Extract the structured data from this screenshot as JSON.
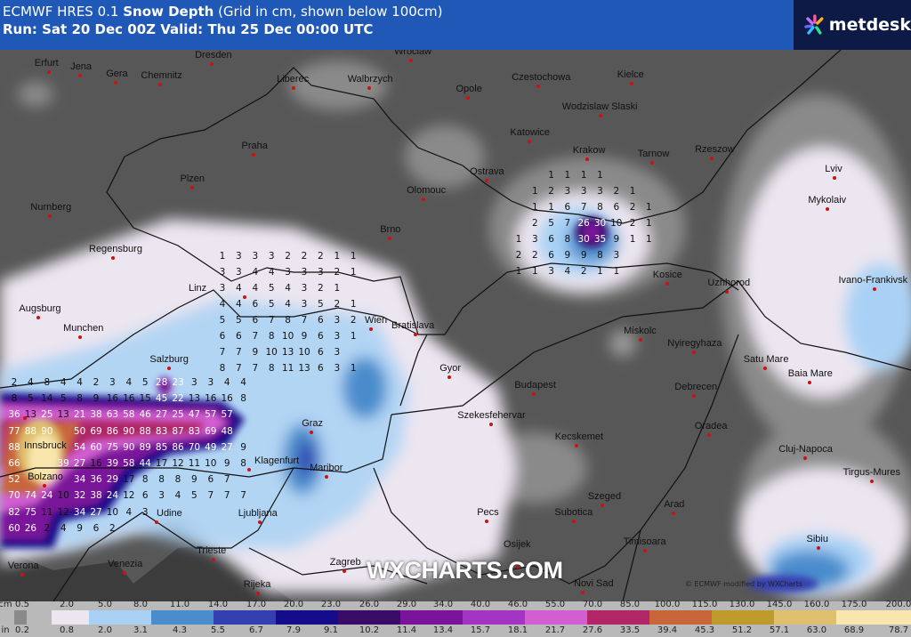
{
  "header": {
    "title_prefix": "ECMWF HRES 0.1 ",
    "title_bold": "Snow Depth",
    "title_suffix": " (Grid in cm, shown below 100cm)",
    "run": "Run: Sat 20 Dec 00Z Valid: Thu 25 Dec 00:00 UTC",
    "logo": "metdesk"
  },
  "map": {
    "watermark": "WXCHARTS.COM",
    "credit": "© ECMWF modified by WXCharts",
    "cities": [
      "Erfurt",
      "Jena",
      "Gera",
      "Chemnitz",
      "Dresden",
      "Liberec",
      "Walbrzych",
      "Wroclaw",
      "Opole",
      "Czestochowa",
      "Kielce",
      "Wodzislaw Slaski",
      "Katowice",
      "Krakow",
      "Tarnow",
      "Rzeszow",
      "Lviv",
      "Mykolaiv",
      "Ivano-Frankivsk",
      "Praha",
      "Plzen",
      "Ostrava",
      "Olomouc",
      "Nurnberg",
      "Brno",
      "Regensburg",
      "Kosice",
      "Uzhhorod",
      "Augsburg",
      "Linz",
      "Wien",
      "Bratislava",
      "Munchen",
      "Miskolc",
      "Nyiregyhaza",
      "Salzburg",
      "Gyor",
      "Satu Mare",
      "Baia Mare",
      "Budapest",
      "Debrecen",
      "Innsbruck",
      "Szekesfehervar",
      "Graz",
      "Oradea",
      "Kecskemet",
      "Klagenfurt",
      "Maribor",
      "Cluj-Napoca",
      "Bolzano",
      "Tirgus-Mures",
      "Szeged",
      "Pecs",
      "Subotica",
      "Arad",
      "Udine",
      "Ljubljana",
      "Timisoara",
      "Sibiu",
      "Trieste",
      "Zagreb",
      "Osijek",
      "Venezia",
      "Verona",
      "Novi Sad",
      "Rijeka"
    ],
    "grid_alps": [
      [
        "2",
        "4",
        "8",
        "4",
        "4",
        "2",
        "3",
        "4",
        "5",
        "28",
        "23",
        "3",
        "3",
        "4",
        "4"
      ],
      [
        "8",
        "5",
        "14",
        "5",
        "8",
        "9",
        "16",
        "16",
        "15",
        "45",
        "22",
        "13",
        "16",
        "16",
        "8"
      ],
      [
        "36",
        "13",
        "25",
        "13",
        "21",
        "38",
        "63",
        "58",
        "46",
        "27",
        "25",
        "47",
        "57",
        "57"
      ],
      [
        "77",
        "88",
        "90",
        "",
        "50",
        "69",
        "86",
        "90",
        "88",
        "83",
        "87",
        "83",
        "69",
        "48"
      ],
      [
        "88",
        "",
        "",
        "",
        "54",
        "60",
        "75",
        "90",
        "89",
        "85",
        "86",
        "70",
        "49",
        "27",
        "9"
      ],
      [
        "66",
        "",
        "",
        "39",
        "27",
        "16",
        "39",
        "58",
        "44",
        "17",
        "12",
        "11",
        "10",
        "9",
        "8"
      ],
      [
        "52",
        "",
        "",
        "",
        "34",
        "36",
        "29",
        "17",
        "8",
        "8",
        "8",
        "9",
        "6",
        "7"
      ],
      [
        "70",
        "74",
        "24",
        "10",
        "32",
        "38",
        "24",
        "12",
        "6",
        "3",
        "4",
        "5",
        "7",
        "7",
        "7"
      ],
      [
        "82",
        "75",
        "11",
        "12",
        "34",
        "27",
        "10",
        "4",
        "3"
      ],
      [
        "60",
        "26",
        "2",
        "4",
        "9",
        "6",
        "2"
      ]
    ],
    "grid_tatra": [
      [
        "",
        "",
        "1",
        "1",
        "1",
        "1"
      ],
      [
        "",
        "1",
        "2",
        "3",
        "3",
        "3",
        "2",
        "1"
      ],
      [
        "",
        "1",
        "1",
        "6",
        "7",
        "8",
        "6",
        "2",
        "1"
      ],
      [
        "",
        "2",
        "5",
        "7",
        "26",
        "30",
        "10",
        "2",
        "1"
      ],
      [
        "1",
        "3",
        "6",
        "8",
        "30",
        "35",
        "9",
        "1",
        "1"
      ],
      [
        "2",
        "2",
        "6",
        "9",
        "9",
        "8",
        "3"
      ],
      [
        "1",
        "1",
        "3",
        "4",
        "2",
        "1",
        "1"
      ]
    ],
    "grid_austria": [
      [
        "1",
        "3",
        "3",
        "3",
        "2",
        "2",
        "2",
        "1",
        "1"
      ],
      [
        "3",
        "3",
        "4",
        "4",
        "3",
        "3",
        "3",
        "2",
        "1"
      ],
      [
        "3",
        "4",
        "4",
        "5",
        "4",
        "3",
        "2",
        "1"
      ],
      [
        "4",
        "4",
        "6",
        "5",
        "4",
        "3",
        "5",
        "2",
        "1"
      ],
      [
        "5",
        "5",
        "6",
        "7",
        "8",
        "7",
        "6",
        "3",
        "2"
      ],
      [
        "6",
        "6",
        "7",
        "8",
        "10",
        "9",
        "6",
        "3",
        "1"
      ],
      [
        "7",
        "7",
        "9",
        "10",
        "13",
        "10",
        "6",
        "3"
      ],
      [
        "8",
        "7",
        "7",
        "8",
        "11",
        "13",
        "6",
        "3",
        "1"
      ]
    ]
  },
  "legend": {
    "cm_label": "cm",
    "in_label": "in",
    "cm": [
      "0.5",
      "2.0",
      "5.0",
      "8.0",
      "11.0",
      "14.0",
      "17.0",
      "20.0",
      "23.0",
      "26.0",
      "29.0",
      "34.0",
      "40.0",
      "46.0",
      "55.0",
      "70.0",
      "85.0",
      "100.0",
      "115.0",
      "130.0",
      "145.0",
      "160.0",
      "175.0",
      "200.0"
    ],
    "in": [
      "0.2",
      "0.8",
      "2.0",
      "3.1",
      "4.3",
      "5.5",
      "6.7",
      "7.9",
      "9.1",
      "10.2",
      "11.4",
      "13.4",
      "15.7",
      "18.1",
      "21.7",
      "27.6",
      "33.5",
      "39.4",
      "45.3",
      "51.2",
      "57.1",
      "63.0",
      "68.9",
      "78.7"
    ],
    "colors": [
      "#8a8a8a",
      "#ece6f0",
      "#a9d1f5",
      "#4a8ccc",
      "#3440b0",
      "#140c88",
      "#3a0c68",
      "#7a149a",
      "#a434c4",
      "#d25ed2",
      "#b02666",
      "#c8663a",
      "#bf9a2c",
      "#dfc06e",
      "#f8e6ac"
    ]
  }
}
